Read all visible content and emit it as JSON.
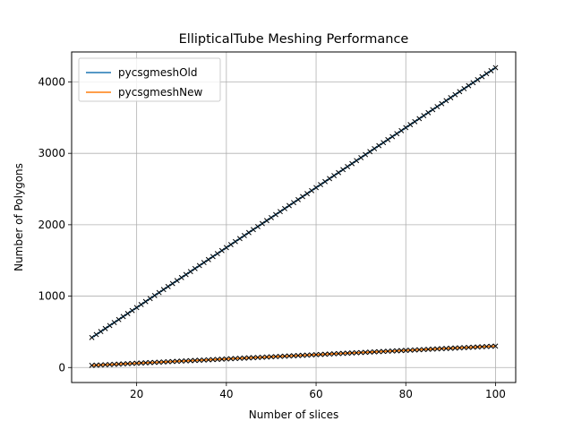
{
  "chart_data": {
    "type": "line",
    "title": "EllipticalTube Meshing Performance",
    "xlabel": "Number of slices",
    "ylabel": "Number of Polygons",
    "xlim": [
      5.5,
      104.5
    ],
    "ylim": [
      -210,
      4420
    ],
    "x_ticks": [
      20,
      40,
      60,
      80,
      100
    ],
    "y_ticks": [
      0,
      1000,
      2000,
      3000,
      4000
    ],
    "grid": true,
    "legend_position": "top-left",
    "marker": "x",
    "marker_color": "#000000",
    "x_range": {
      "start": 10,
      "end": 100,
      "step": 1
    },
    "series": [
      {
        "name": "pycsgmeshOld",
        "color": "#1f77b4",
        "values_formula": "42*x",
        "y_start": 420,
        "y_end": 4200
      },
      {
        "name": "pycsgmeshNew",
        "color": "#ff7f0e",
        "values_formula": "3*x",
        "y_start": 30,
        "y_end": 300
      }
    ]
  }
}
